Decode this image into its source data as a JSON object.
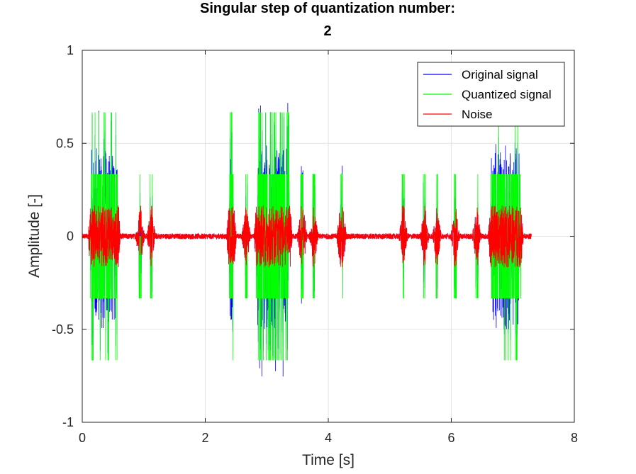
{
  "chart_data": {
    "type": "line",
    "title_line1": "Singular step of quantization number:",
    "title_line2": "2",
    "xlabel": "Time [s]",
    "ylabel": "Amplitude [-]",
    "xlim": [
      0,
      8
    ],
    "ylim": [
      -1,
      1
    ],
    "xticks": [
      0,
      2,
      4,
      6,
      8
    ],
    "xtick_labels": [
      "0",
      "2",
      "4",
      "6",
      "8"
    ],
    "yticks": [
      -1,
      -0.5,
      0,
      0.5,
      1
    ],
    "ytick_labels": [
      "-1",
      "-0.5",
      "0",
      "0.5",
      "1"
    ],
    "grid": true,
    "legend_position": "top-right",
    "signal_duration_s": 7.3,
    "quantization_levels": [
      -0.667,
      -0.333,
      0,
      0.333,
      0.667
    ],
    "noise_peak_amplitude": 0.167,
    "series": [
      {
        "name": "Original signal",
        "color": "#0000ff"
      },
      {
        "name": "Quantized signal",
        "color": "#00ff00"
      },
      {
        "name": "Noise",
        "color": "#ff0000"
      }
    ],
    "bursts": [
      {
        "t0": 0.15,
        "t1": 0.57,
        "peak": 0.73
      },
      {
        "t0": 0.92,
        "t1": 0.96,
        "peak": 0.34
      },
      {
        "t0": 1.1,
        "t1": 1.14,
        "peak": 0.33
      },
      {
        "t0": 2.4,
        "t1": 2.45,
        "peak": 0.67
      },
      {
        "t0": 2.65,
        "t1": 2.68,
        "peak": 0.36
      },
      {
        "t0": 2.85,
        "t1": 3.36,
        "peak": 0.77
      },
      {
        "t0": 3.55,
        "t1": 3.6,
        "peak": 0.44
      },
      {
        "t0": 3.75,
        "t1": 3.78,
        "peak": 0.34
      },
      {
        "t0": 4.19,
        "t1": 4.24,
        "peak": 0.48
      },
      {
        "t0": 5.2,
        "t1": 5.24,
        "peak": 0.33
      },
      {
        "t0": 5.55,
        "t1": 5.58,
        "peak": 0.34
      },
      {
        "t0": 5.75,
        "t1": 5.78,
        "peak": 0.33
      },
      {
        "t0": 6.05,
        "t1": 6.08,
        "peak": 0.34
      },
      {
        "t0": 6.4,
        "t1": 6.43,
        "peak": 0.33
      },
      {
        "t0": 6.65,
        "t1": 7.12,
        "peak": 0.6
      }
    ]
  }
}
